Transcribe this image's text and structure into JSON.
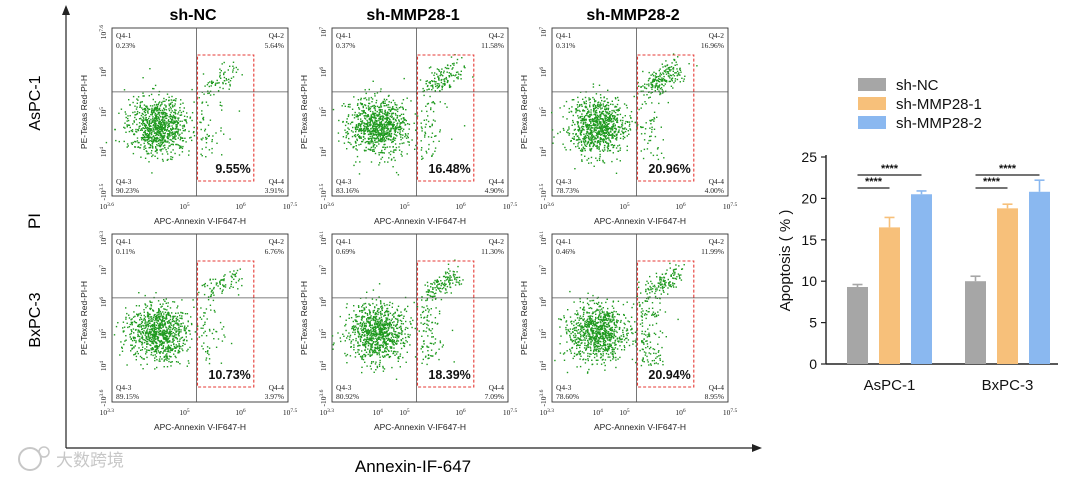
{
  "figure": {
    "col_titles": [
      "sh-NC",
      "sh-MMP28-1",
      "sh-MMP28-2"
    ],
    "row_titles": [
      "AsPC-1",
      "BxPC-3"
    ],
    "y_side_label": "PI",
    "x_bottom_label": "Annexin-IF-647",
    "watermark": "大数跨境",
    "colors": {
      "dots": "#1f9a1f",
      "gate": "#e53935",
      "nc": "#a6a6a6",
      "m1": "#f7c07a",
      "m2": "#8ab8f0"
    }
  },
  "flow_panels": [
    {
      "row": 0,
      "col": 0,
      "x_axis_label": "APC-Annexin V-IF647-H",
      "y_axis_label": "PE-Texas Red-PI-H",
      "x_ticks": [
        "10^3.6",
        "10^5",
        "10^6",
        "10^7.5"
      ],
      "y_ticks": [
        "10^7.6",
        "10^6",
        "10^5",
        "10^4",
        "-10^3.5"
      ],
      "q1_name": "Q4-1",
      "q1_pct": "0.23%",
      "q2_name": "Q4-2",
      "q2_pct": "5.64%",
      "q3_name": "Q4-3",
      "q3_pct": "90.23%",
      "q4_name": "Q4-4",
      "q4_pct": "3.91%",
      "gate_pct": "9.55%",
      "early_apoptotic_fraction": 0.04,
      "late_apoptotic_fraction": 0.056
    },
    {
      "row": 0,
      "col": 1,
      "x_axis_label": "APC-Annexin V-IF647-H",
      "y_axis_label": "PE-Texas Red-PI-H",
      "x_ticks": [
        "10^3.6",
        "10^5",
        "10^6",
        "10^7.5"
      ],
      "y_ticks": [
        "10^7",
        "10^6",
        "10^5",
        "10^4",
        "-10^3.5"
      ],
      "q1_name": "Q4-1",
      "q1_pct": "0.37%",
      "q2_name": "Q4-2",
      "q2_pct": "11.58%",
      "q3_name": "Q4-3",
      "q3_pct": "83.16%",
      "q4_name": "Q4-4",
      "q4_pct": "4.90%",
      "gate_pct": "16.48%",
      "early_apoptotic_fraction": 0.05,
      "late_apoptotic_fraction": 0.116
    },
    {
      "row": 0,
      "col": 2,
      "x_axis_label": "APC-Annexin V-IF647-H",
      "y_axis_label": "PE-Texas Red-PI-H",
      "x_ticks": [
        "10^3.6",
        "10^5",
        "10^6",
        "10^7.5"
      ],
      "y_ticks": [
        "10^7",
        "10^6",
        "10^5",
        "10^4",
        "-10^3.5"
      ],
      "q1_name": "Q4-1",
      "q1_pct": "0.31%",
      "q2_name": "Q4-2",
      "q2_pct": "16.96%",
      "q3_name": "Q4-3",
      "q3_pct": "78.73%",
      "q4_name": "Q4-4",
      "q4_pct": "4.00%",
      "gate_pct": "20.96%",
      "early_apoptotic_fraction": 0.04,
      "late_apoptotic_fraction": 0.17
    },
    {
      "row": 1,
      "col": 0,
      "x_axis_label": "APC-Annexin V-IF647-H",
      "y_axis_label": "PE-Texas Red-PI-H",
      "x_ticks": [
        "10^3.3",
        "10^5",
        "10^6",
        "10^7.5"
      ],
      "y_ticks": [
        "10^8.3",
        "10^7",
        "10^6",
        "10^5",
        "10^4",
        "-10^3.6"
      ],
      "q1_name": "Q4-1",
      "q1_pct": "0.11%",
      "q2_name": "Q4-2",
      "q2_pct": "6.76%",
      "q3_name": "Q4-3",
      "q3_pct": "89.15%",
      "q4_name": "Q4-4",
      "q4_pct": "3.97%",
      "gate_pct": "10.73%",
      "early_apoptotic_fraction": 0.04,
      "late_apoptotic_fraction": 0.068
    },
    {
      "row": 1,
      "col": 1,
      "x_axis_label": "APC-Annexin V-IF647-H",
      "y_axis_label": "PE-Texas Red-PI-H",
      "x_ticks": [
        "10^3.3",
        "10^4",
        "10^5",
        "10^6",
        "10^7.5"
      ],
      "y_ticks": [
        "10^8.1",
        "10^7",
        "10^6",
        "10^5",
        "10^4",
        "-10^3.6"
      ],
      "q1_name": "Q4-1",
      "q1_pct": "0.69%",
      "q2_name": "Q4-2",
      "q2_pct": "11.30%",
      "q3_name": "Q4-3",
      "q3_pct": "80.92%",
      "q4_name": "Q4-4",
      "q4_pct": "7.09%",
      "gate_pct": "18.39%",
      "early_apoptotic_fraction": 0.071,
      "late_apoptotic_fraction": 0.113
    },
    {
      "row": 1,
      "col": 2,
      "x_axis_label": "APC-Annexin V-IF647-H",
      "y_axis_label": "PE-Texas Red-PI-H",
      "x_ticks": [
        "10^3.3",
        "10^4",
        "10^5",
        "10^6",
        "10^7.5"
      ],
      "y_ticks": [
        "10^8.1",
        "10^7",
        "10^6",
        "10^5",
        "10^4",
        "-10^3.6"
      ],
      "q1_name": "Q4-1",
      "q1_pct": "0.46%",
      "q2_name": "Q4-2",
      "q2_pct": "11.99%",
      "q3_name": "Q4-3",
      "q3_pct": "78.60%",
      "q4_name": "Q4-4",
      "q4_pct": "8.95%",
      "gate_pct": "20.94%",
      "early_apoptotic_fraction": 0.09,
      "late_apoptotic_fraction": 0.12
    }
  ],
  "chart_data": {
    "type": "bar",
    "title": "",
    "xlabel": "",
    "ylabel": "Apoptosis ( % )",
    "ylim": [
      0,
      25
    ],
    "yticks": [
      0,
      5,
      10,
      15,
      20,
      25
    ],
    "categories": [
      "AsPC-1",
      "BxPC-3"
    ],
    "series": [
      {
        "name": "sh-NC",
        "color": "#a6a6a6",
        "values": [
          9.3,
          10.0
        ],
        "errors": [
          0.3,
          0.6
        ]
      },
      {
        "name": "sh-MMP28-1",
        "color": "#f7c07a",
        "values": [
          16.5,
          18.8
        ],
        "errors": [
          1.2,
          0.5
        ]
      },
      {
        "name": "sh-MMP28-2",
        "color": "#8ab8f0",
        "values": [
          20.5,
          20.8
        ],
        "errors": [
          0.4,
          1.4
        ]
      }
    ],
    "legend_position": "top",
    "significance": [
      {
        "category": "AsPC-1",
        "label": "****",
        "from": "sh-NC",
        "to": "sh-MMP28-1"
      },
      {
        "category": "AsPC-1",
        "label": "****",
        "from": "sh-NC",
        "to": "sh-MMP28-2"
      },
      {
        "category": "BxPC-3",
        "label": "****",
        "from": "sh-NC",
        "to": "sh-MMP28-1"
      },
      {
        "category": "BxPC-3",
        "label": "****",
        "from": "sh-NC",
        "to": "sh-MMP28-2"
      }
    ]
  }
}
